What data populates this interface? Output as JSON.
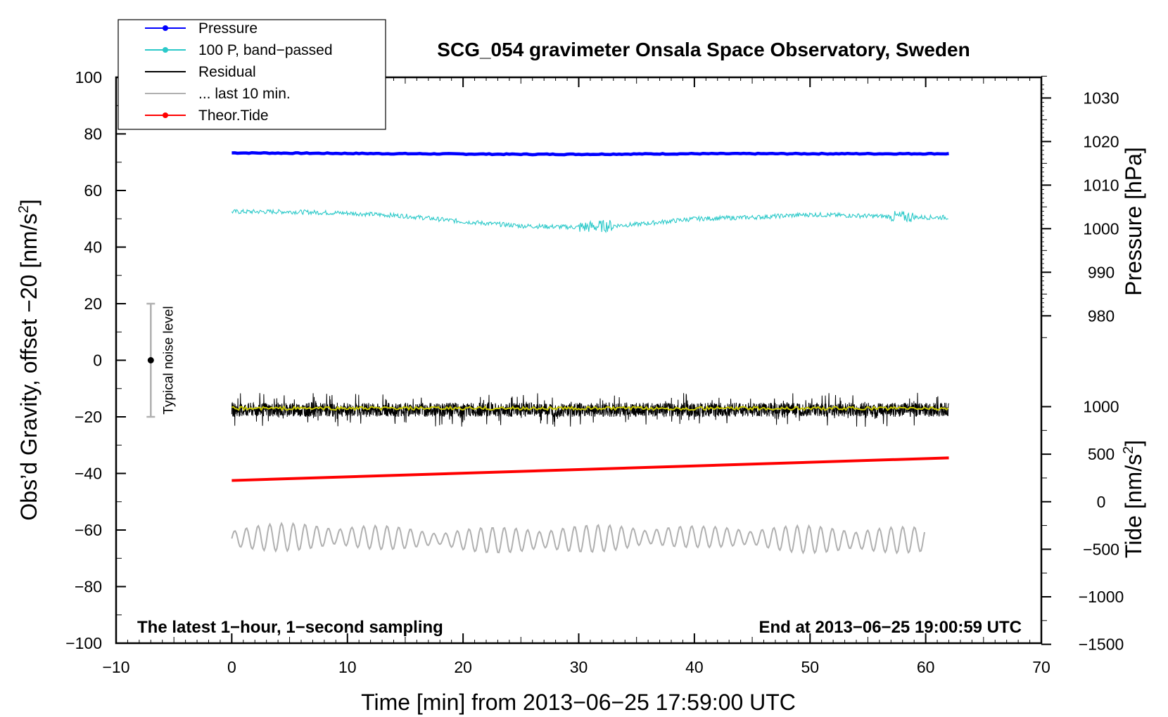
{
  "chart_data": {
    "type": "line",
    "title": "SCG_054 gravimeter Onsala Space Observatory, Sweden",
    "xlabel": "Time [min] from 2013−06−25 17:59:00 UTC",
    "ylabel_left": "Obs’d Gravity, offset −20 [nm/s",
    "ylabel_left_sup": "2",
    "ylabel_left_end": "]",
    "ylabel_right_pressure": "Pressure [hPa]",
    "ylabel_right_tide": "Tide [nm/s",
    "ylabel_right_tide_sup": "2",
    "ylabel_right_tide_end": "]",
    "xlim": [
      -10,
      70
    ],
    "ylim": [
      -100,
      100
    ],
    "x_ticks": [
      -10,
      0,
      10,
      20,
      30,
      40,
      50,
      60,
      70
    ],
    "x_tick_labels": [
      "−10",
      "0",
      "10",
      "20",
      "30",
      "40",
      "50",
      "60",
      "70"
    ],
    "y_ticks": [
      100,
      80,
      60,
      40,
      20,
      0,
      -20,
      -40,
      -60,
      -80,
      -100
    ],
    "y_tick_labels": [
      "100",
      "80",
      "60",
      "40",
      "20",
      "0",
      "−20",
      "−40",
      "−60",
      "−80",
      "−100"
    ],
    "pressure_axis": {
      "ticks": [
        1030,
        1020,
        1010,
        1000,
        990,
        980
      ],
      "tick_labels": [
        "1030",
        "1020",
        "1010",
        "1000",
        "990",
        "980"
      ],
      "gravity_at_1000": 46.5,
      "gravity_per_hpa": 1.54
    },
    "tide_axis": {
      "ticks": [
        1000,
        500,
        0,
        -500,
        -1000,
        -1500
      ],
      "tick_labels": [
        "1000",
        "500",
        "0",
        "−500",
        "−1000",
        "−1500"
      ],
      "gravity_at_0": -50.0,
      "gravity_per_unit": 0.0336
    },
    "legend": [
      {
        "label": "Pressure",
        "color": "#0000ff",
        "marker": true
      },
      {
        "label": "100 P, band−passed",
        "color": "#2bc9c9",
        "marker": true
      },
      {
        "label": "Residual",
        "color": "#000000",
        "marker": false
      },
      {
        "label": "... last 10 min.",
        "color": "#b0b0b0",
        "marker": false
      },
      {
        "label": "Theor.Tide",
        "color": "#ff0000",
        "marker": true
      }
    ],
    "series": [
      {
        "name": "Pressure",
        "color": "#0000ff",
        "x": [
          0,
          10,
          20,
          25,
          30,
          35,
          40,
          50,
          62
        ],
        "y": [
          73.3,
          73.1,
          72.9,
          72.8,
          72.8,
          72.9,
          73.0,
          73.0,
          73.0
        ]
      },
      {
        "name": "100 P, band−passed",
        "color": "#2bc9c9",
        "x": [
          0,
          5,
          10,
          15,
          20,
          25,
          30,
          35,
          40,
          45,
          50,
          55,
          60,
          62
        ],
        "y": [
          52.5,
          52.5,
          52.0,
          51.0,
          49.0,
          47.5,
          47.0,
          48.0,
          50.0,
          50.5,
          51.5,
          51.0,
          50.5,
          50.5
        ]
      },
      {
        "name": "Residual",
        "color": "#000000",
        "x": [
          0,
          62
        ],
        "y": [
          -17.5,
          -17.5
        ]
      },
      {
        "name": "Residual smoothed",
        "color": "#c8c800",
        "x": [
          0,
          62
        ],
        "y": [
          -17,
          -17
        ]
      },
      {
        "name": "Theor.Tide",
        "color": "#ff0000",
        "x": [
          0,
          62
        ],
        "y": [
          -42.5,
          -34.5
        ]
      },
      {
        "name": "... last 10 min.",
        "color": "#b0b0b0",
        "x": [
          0,
          60
        ],
        "y": [
          -63,
          -63
        ]
      }
    ],
    "noise_bar": {
      "x": -7,
      "y": 0,
      "ymin": -20,
      "ymax": 20,
      "label": "Typical noise level"
    },
    "annotations": {
      "left": "The latest 1−hour, 1−second sampling",
      "right": "End at 2013−06−25 19:00:59 UTC"
    },
    "grid": false,
    "legend_position": "top-left"
  }
}
